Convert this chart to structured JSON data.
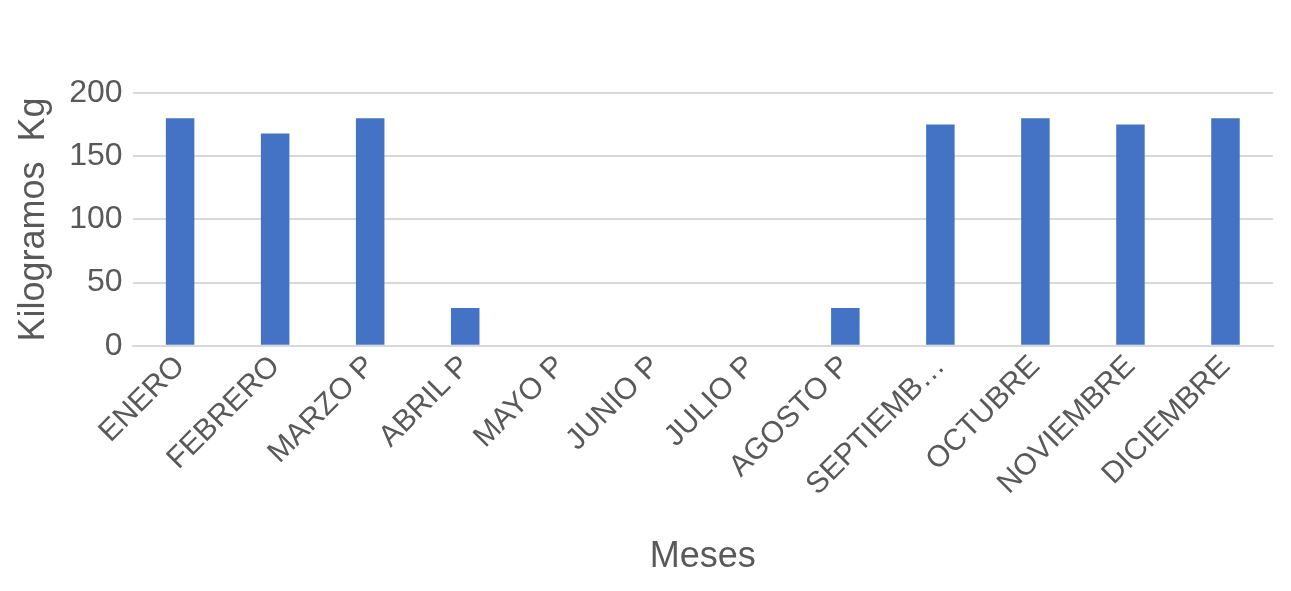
{
  "chart_data": {
    "type": "bar",
    "xlabel": "Meses",
    "ylabel": "Kilogramos  Kg",
    "categories": [
      "ENERO",
      "FEBRERO",
      "MARZO P",
      "ABRIL P",
      "MAYO P",
      "JUNIO P",
      "JULIO P",
      "AGOSTO P",
      "SEPTIEMB…",
      "OCTUBRE",
      "NOVIEMBRE",
      "DICIEMBRE"
    ],
    "values": [
      180,
      168,
      180,
      30,
      0,
      0,
      0,
      30,
      175,
      180,
      175,
      180
    ],
    "color": "#4472c4",
    "ylim": [
      0,
      200
    ],
    "yticks": [
      0,
      50,
      100,
      150,
      200
    ],
    "grid": "y",
    "legend": false
  }
}
